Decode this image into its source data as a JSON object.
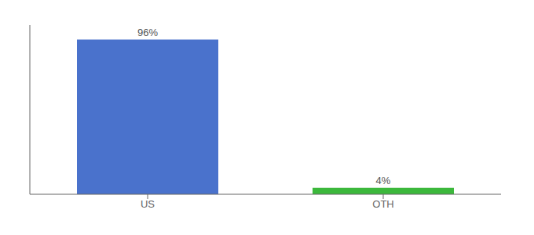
{
  "chart_data": {
    "type": "bar",
    "categories": [
      "US",
      "OTH"
    ],
    "values": [
      96,
      4
    ],
    "value_labels": [
      "96%",
      "4%"
    ],
    "colors": [
      "#4a72cc",
      "#3cb83c"
    ],
    "ylim": [
      0,
      105
    ],
    "data_labels": true,
    "tick_labels": "x",
    "grid": false
  }
}
